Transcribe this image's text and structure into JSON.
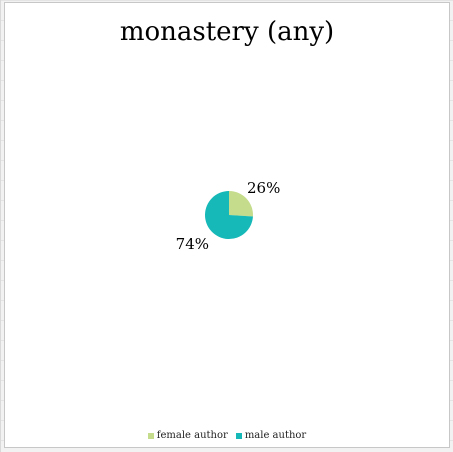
{
  "chart_data": {
    "type": "pie",
    "title": "monastery (any)",
    "slices": [
      {
        "label": "female author",
        "value": 26,
        "display": "26%",
        "color": "#c4dc8b"
      },
      {
        "label": "male author",
        "value": 74,
        "display": "74%",
        "color": "#16b8b8"
      }
    ],
    "legend_position": "bottom"
  }
}
